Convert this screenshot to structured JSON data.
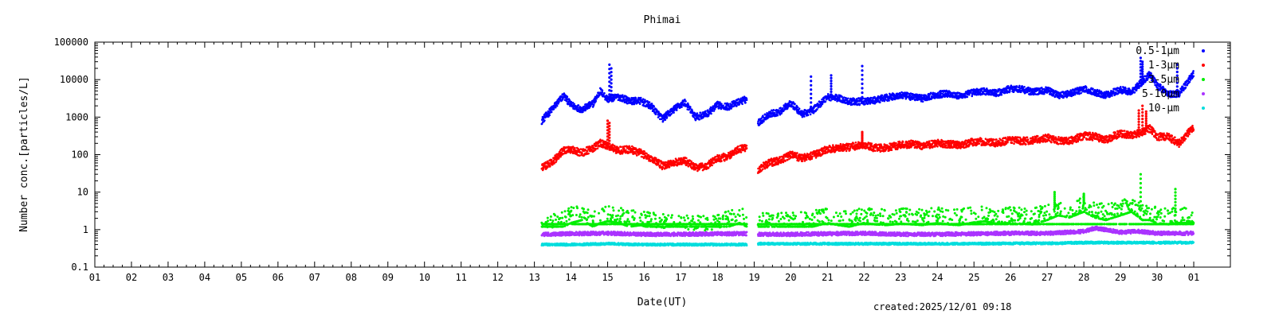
{
  "chart_data": {
    "type": "scatter",
    "title": "Phimai",
    "xlabel": "Date(UT)",
    "ylabel": "Number conc.[particles/L]",
    "yscale": "log",
    "ylim": [
      0.1,
      100000
    ],
    "xlim": [
      1,
      32
    ],
    "x_tick_labels": [
      "01",
      "02",
      "03",
      "04",
      "05",
      "06",
      "07",
      "08",
      "09",
      "10",
      "11",
      "12",
      "13",
      "14",
      "15",
      "16",
      "17",
      "18",
      "19",
      "20",
      "21",
      "22",
      "23",
      "24",
      "25",
      "26",
      "27",
      "28",
      "29",
      "30",
      "01"
    ],
    "y_tick_labels": [
      "0.1",
      "1",
      "10",
      "100",
      "1000",
      "10000",
      "100000"
    ],
    "y_ticks": [
      0.1,
      1,
      10,
      100,
      1000,
      10000,
      100000
    ],
    "grid": false,
    "legend_position": "top-right",
    "data_gap": [
      18.8,
      19.1
    ],
    "series": [
      {
        "name": "0.5-1μm",
        "color": "#0000ff",
        "x": [
          13.2,
          13.5,
          13.8,
          14.0,
          14.3,
          14.6,
          14.8,
          15.0,
          15.3,
          15.6,
          15.9,
          16.2,
          16.5,
          16.8,
          17.1,
          17.4,
          17.7,
          18.0,
          18.3,
          18.6,
          18.8,
          19.1,
          19.4,
          19.7,
          20.0,
          20.3,
          20.6,
          21.0,
          21.3,
          21.6,
          22.0,
          22.3,
          22.6,
          23.0,
          23.3,
          23.6,
          24.0,
          24.3,
          24.6,
          25.0,
          25.3,
          25.6,
          26.0,
          26.3,
          26.6,
          27.0,
          27.3,
          27.6,
          28.0,
          28.3,
          28.6,
          29.0,
          29.3,
          29.6,
          29.8,
          30.0,
          30.3,
          30.6,
          31.0
        ],
        "y": [
          800,
          1700,
          3800,
          2100,
          1600,
          2300,
          5000,
          3000,
          3500,
          2700,
          2700,
          1900,
          900,
          1600,
          2500,
          1000,
          1200,
          2100,
          1900,
          2600,
          3000,
          700,
          1200,
          1400,
          2400,
          1200,
          1500,
          3500,
          3200,
          2600,
          2600,
          2800,
          3300,
          3800,
          3500,
          3200,
          4000,
          4300,
          3600,
          4600,
          4900,
          4300,
          5800,
          5600,
          4700,
          5200,
          3900,
          4200,
          5600,
          4600,
          3900,
          5400,
          4600,
          9000,
          14000,
          7000,
          4200,
          4200,
          15000
        ],
        "spikes_x": [
          15.05,
          15.1,
          20.55,
          21.1,
          21.95,
          29.55,
          29.6,
          30.55
        ],
        "spikes_y": [
          25000,
          20000,
          12000,
          13000,
          23000,
          38000,
          30000,
          25000
        ]
      },
      {
        "name": "1-3μm",
        "color": "#ff0000",
        "x": [
          13.2,
          13.5,
          13.8,
          14.0,
          14.3,
          14.6,
          14.8,
          15.0,
          15.3,
          15.6,
          15.9,
          16.2,
          16.5,
          16.8,
          17.1,
          17.4,
          17.7,
          18.0,
          18.3,
          18.6,
          18.8,
          19.1,
          19.4,
          19.7,
          20.0,
          20.3,
          20.6,
          21.0,
          21.3,
          21.6,
          22.0,
          22.3,
          22.6,
          23.0,
          23.3,
          23.6,
          24.0,
          24.3,
          24.6,
          25.0,
          25.3,
          25.6,
          26.0,
          26.3,
          26.6,
          27.0,
          27.3,
          27.6,
          28.0,
          28.3,
          28.6,
          29.0,
          29.3,
          29.6,
          29.8,
          30.0,
          30.3,
          30.6,
          31.0
        ],
        "y": [
          45,
          65,
          130,
          140,
          110,
          150,
          200,
          170,
          130,
          140,
          110,
          80,
          50,
          60,
          70,
          45,
          50,
          80,
          90,
          140,
          150,
          40,
          60,
          70,
          100,
          80,
          95,
          140,
          150,
          160,
          180,
          150,
          150,
          180,
          190,
          170,
          200,
          190,
          180,
          220,
          220,
          200,
          250,
          230,
          240,
          280,
          240,
          230,
          320,
          300,
          250,
          370,
          330,
          400,
          500,
          300,
          300,
          200,
          550
        ],
        "spikes_x": [
          15.0,
          15.05,
          21.95,
          29.5,
          29.6,
          29.7
        ],
        "spikes_y": [
          800,
          700,
          400,
          1500,
          2000,
          1400
        ]
      },
      {
        "name": "3-5μm",
        "color": "#00ee00",
        "x": [
          13.2,
          13.5,
          13.8,
          14.0,
          14.3,
          14.6,
          14.8,
          15.0,
          15.3,
          15.6,
          15.9,
          16.2,
          16.5,
          16.8,
          17.1,
          17.4,
          17.7,
          18.0,
          18.3,
          18.6,
          18.8,
          19.1,
          19.4,
          19.7,
          20.0,
          20.3,
          20.6,
          21.0,
          21.3,
          21.6,
          22.0,
          22.3,
          22.6,
          23.0,
          23.3,
          23.6,
          24.0,
          24.3,
          24.6,
          25.0,
          25.3,
          25.6,
          26.0,
          26.3,
          26.6,
          27.0,
          27.3,
          27.6,
          28.0,
          28.3,
          28.6,
          29.0,
          29.3,
          29.6,
          29.8,
          30.0,
          30.3,
          30.6,
          31.0
        ],
        "y": [
          1.5,
          1.8,
          2.0,
          2.5,
          3.0,
          2.0,
          2.5,
          2.8,
          2.5,
          2.0,
          2.2,
          1.8,
          1.7,
          1.8,
          1.6,
          1.5,
          1.5,
          1.6,
          2.0,
          2.5,
          2.0,
          1.8,
          2.0,
          1.8,
          1.9,
          2.0,
          2.0,
          2.5,
          2.2,
          2.0,
          2.5,
          2.3,
          2.2,
          2.4,
          2.3,
          2.2,
          2.5,
          2.3,
          2.2,
          2.6,
          2.8,
          2.4,
          2.5,
          2.4,
          2.3,
          3.0,
          4.0,
          3.5,
          5.0,
          3.5,
          3.0,
          4.0,
          5.0,
          3.0,
          3.0,
          2.5,
          2.3,
          2.5,
          2.5
        ],
        "spikes_x": [
          27.2,
          28.0,
          29.55,
          30.5
        ],
        "spikes_y": [
          10,
          9,
          30,
          12
        ]
      },
      {
        "name": "5-10μm",
        "color": "#aa33ff",
        "x": [
          13.2,
          14.0,
          15.0,
          16.0,
          17.0,
          18.0,
          18.8,
          19.1,
          20.0,
          21.0,
          22.0,
          23.0,
          24.0,
          25.0,
          26.0,
          27.0,
          28.0,
          28.3,
          29.0,
          29.5,
          30.0,
          31.0
        ],
        "y": [
          0.75,
          0.78,
          0.8,
          0.75,
          0.75,
          0.78,
          0.78,
          0.75,
          0.75,
          0.78,
          0.8,
          0.75,
          0.75,
          0.78,
          0.8,
          0.8,
          0.9,
          1.1,
          0.85,
          0.9,
          0.8,
          0.8
        ]
      },
      {
        "name": "10-μm",
        "color": "#00dddd",
        "x": [
          13.2,
          14.0,
          15.0,
          16.0,
          17.0,
          18.0,
          18.8,
          19.1,
          20.0,
          21.0,
          22.0,
          23.0,
          24.0,
          25.0,
          26.0,
          27.0,
          28.0,
          28.5,
          29.0,
          29.5,
          30.0,
          31.0
        ],
        "y": [
          0.4,
          0.4,
          0.42,
          0.4,
          0.4,
          0.4,
          0.4,
          0.42,
          0.42,
          0.42,
          0.42,
          0.42,
          0.42,
          0.42,
          0.43,
          0.43,
          0.45,
          0.45,
          0.45,
          0.45,
          0.45,
          0.45
        ]
      }
    ]
  },
  "footer": {
    "created": "created:2025/12/01 09:18"
  }
}
